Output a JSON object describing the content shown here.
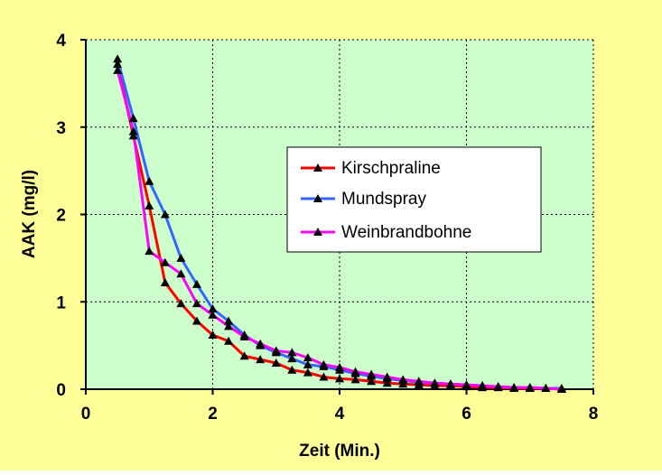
{
  "chart_data": {
    "type": "line",
    "title": "",
    "xlabel": "Zeit (Min.)",
    "ylabel": "AAK (mg/l)",
    "xlim": [
      0,
      8
    ],
    "ylim": [
      0,
      4
    ],
    "x_ticks": [
      "0",
      "2",
      "4",
      "6",
      "8"
    ],
    "y_ticks": [
      "0",
      "1",
      "2",
      "3",
      "4"
    ],
    "grid": true,
    "legend_position": "center-right",
    "background_color": "#ffff99",
    "plot_area_color": "#ccffcc",
    "marker": "black triangle",
    "series": [
      {
        "name": "Kirschpraline",
        "color": "#ff0000",
        "x": [
          0.5,
          0.75,
          1.0,
          1.25,
          1.5,
          1.75,
          2.0,
          2.25,
          2.5,
          2.75,
          3.0,
          3.25,
          3.5,
          3.75,
          4.0,
          4.25,
          4.5,
          4.75,
          5.0,
          5.25,
          5.5,
          5.75,
          6.0,
          6.25,
          6.5,
          6.75,
          7.0,
          7.25,
          7.5
        ],
        "values": [
          3.72,
          2.9,
          2.1,
          1.22,
          0.98,
          0.78,
          0.62,
          0.55,
          0.38,
          0.34,
          0.3,
          0.22,
          0.19,
          0.14,
          0.12,
          0.11,
          0.09,
          0.07,
          0.06,
          0.05,
          0.04,
          0.04,
          0.03,
          0.02,
          0.02,
          0.01,
          0.01,
          0.01,
          0.0
        ]
      },
      {
        "name": "Mundspray",
        "color": "#3366ff",
        "x": [
          0.5,
          0.75,
          1.0,
          1.25,
          1.5,
          1.75,
          2.0,
          2.25,
          2.5,
          2.75,
          3.0,
          3.25,
          3.5,
          3.75,
          4.0,
          4.25,
          4.5,
          4.75,
          5.0,
          5.25,
          5.5,
          5.75,
          6.0,
          6.25,
          6.5,
          6.75,
          7.0,
          7.25,
          7.5
        ],
        "values": [
          3.78,
          3.1,
          2.38,
          2.0,
          1.5,
          1.2,
          0.92,
          0.78,
          0.62,
          0.5,
          0.42,
          0.35,
          0.28,
          0.26,
          0.22,
          0.18,
          0.15,
          0.12,
          0.1,
          0.08,
          0.07,
          0.06,
          0.05,
          0.04,
          0.03,
          0.02,
          0.02,
          0.01,
          0.01
        ]
      },
      {
        "name": "Weinbrandbohne",
        "color": "#ff00ff",
        "x": [
          0.5,
          0.75,
          1.0,
          1.25,
          1.5,
          1.75,
          2.0,
          2.25,
          2.5,
          2.75,
          3.0,
          3.25,
          3.5,
          3.75,
          4.0,
          4.25,
          4.5,
          4.75,
          5.0,
          5.25,
          5.5,
          5.75,
          6.0,
          6.25,
          6.5,
          6.75,
          7.0,
          7.25,
          7.5
        ],
        "values": [
          3.65,
          2.95,
          1.58,
          1.45,
          1.32,
          0.98,
          0.85,
          0.72,
          0.6,
          0.52,
          0.44,
          0.42,
          0.36,
          0.28,
          0.25,
          0.2,
          0.17,
          0.14,
          0.11,
          0.09,
          0.07,
          0.06,
          0.05,
          0.04,
          0.03,
          0.02,
          0.02,
          0.01,
          0.0
        ]
      }
    ]
  }
}
